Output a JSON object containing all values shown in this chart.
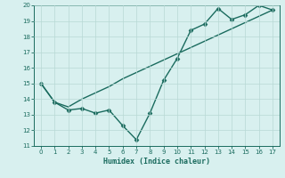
{
  "xlabel": "Humidex (Indice chaleur)",
  "x": [
    0,
    1,
    2,
    3,
    4,
    5,
    6,
    7,
    8,
    9,
    10,
    11,
    12,
    13,
    14,
    15,
    16,
    17
  ],
  "y_zigzag": [
    15,
    13.8,
    13.3,
    13.4,
    13.1,
    13.3,
    12.3,
    11.4,
    13.1,
    15.2,
    16.6,
    18.4,
    18.8,
    19.8,
    19.1,
    19.4,
    20.0,
    19.7
  ],
  "y_line": [
    15,
    13.8,
    13.5,
    14.0,
    14.4,
    14.8,
    15.3,
    15.7,
    16.1,
    16.5,
    16.9,
    17.3,
    17.7,
    18.1,
    18.5,
    18.9,
    19.3,
    19.7
  ],
  "ylim": [
    11,
    20
  ],
  "xlim": [
    -0.5,
    17.5
  ],
  "yticks": [
    11,
    12,
    13,
    14,
    15,
    16,
    17,
    18,
    19,
    20
  ],
  "xticks": [
    0,
    1,
    2,
    3,
    4,
    5,
    6,
    7,
    8,
    9,
    10,
    11,
    12,
    13,
    14,
    15,
    16,
    17
  ],
  "line_color": "#1a6b5e",
  "bg_color": "#d8f0ef",
  "grid_color": "#b8d8d5",
  "marker": "D",
  "marker_size": 2.5,
  "linewidth": 1.0
}
